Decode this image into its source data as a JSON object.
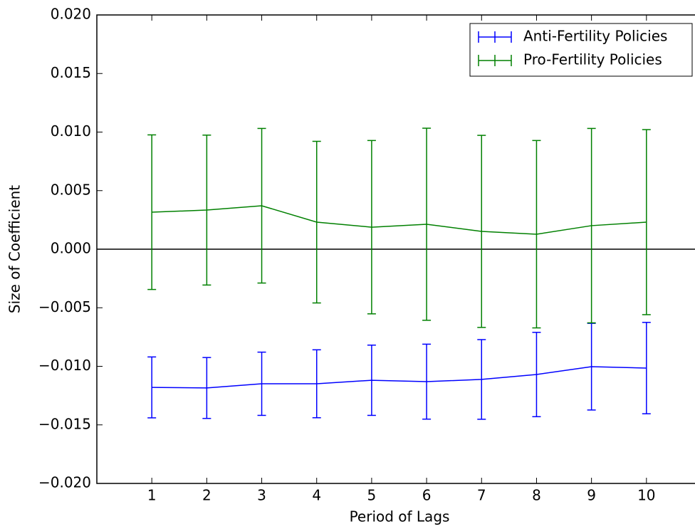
{
  "chart_data": {
    "type": "errorbar-line",
    "xlabel": "Period of Lags",
    "ylabel": "Size of Coefficient",
    "x": [
      1,
      2,
      3,
      4,
      5,
      6,
      7,
      8,
      9,
      10
    ],
    "xlim": [
      0,
      11
    ],
    "xticks": [
      1,
      2,
      3,
      4,
      5,
      6,
      7,
      8,
      9,
      10
    ],
    "ylim": [
      -0.02,
      0.02
    ],
    "yticks": [
      {
        "value": -0.02,
        "label": "−0.020"
      },
      {
        "value": -0.015,
        "label": "−0.015"
      },
      {
        "value": -0.01,
        "label": "−0.010"
      },
      {
        "value": -0.005,
        "label": "−0.005"
      },
      {
        "value": 0,
        "label": "0.000"
      },
      {
        "value": 0.005,
        "label": "0.005"
      },
      {
        "value": 0.01,
        "label": "0.010"
      },
      {
        "value": 0.015,
        "label": "0.015"
      },
      {
        "value": 0.02,
        "label": "0.020"
      }
    ],
    "zero_line": true,
    "grid": false,
    "legend": "upper right",
    "series": [
      {
        "name": "Anti-Fertility Policies",
        "color": "#0000ff",
        "values": [
          -0.0118,
          -0.01185,
          -0.01149,
          -0.01149,
          -0.01119,
          -0.01131,
          -0.01112,
          -0.0107,
          -0.01003,
          -0.01015
        ],
        "errors": [
          0.0026,
          0.0026,
          0.0027,
          0.0029,
          0.003,
          0.0032,
          0.0034,
          0.0036,
          0.0037,
          0.0039
        ]
      },
      {
        "name": "Pro-Fertility Policies",
        "color": "#008000",
        "values": [
          0.00316,
          0.00334,
          0.00371,
          0.00231,
          0.00188,
          0.00213,
          0.00152,
          0.00128,
          0.00201,
          0.00231
        ],
        "errors": [
          0.0066,
          0.0064,
          0.0066,
          0.0069,
          0.0074,
          0.0082,
          0.0082,
          0.008,
          0.0083,
          0.0079
        ]
      }
    ]
  }
}
